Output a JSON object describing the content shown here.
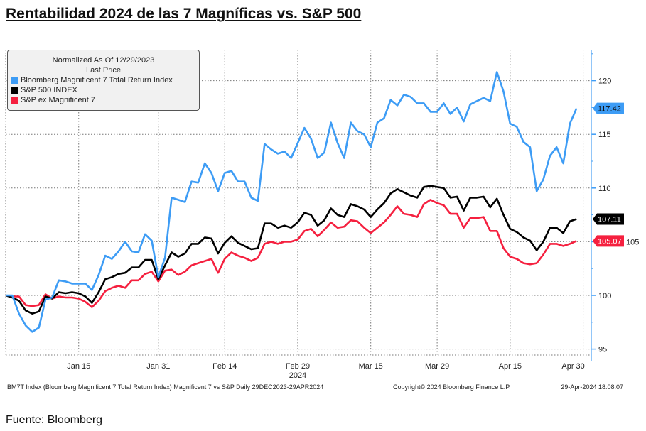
{
  "title": "Rentabilidad 2024 de las 7 Magníficas vs. S&P 500",
  "source": "Fuente: Bloomberg",
  "footer": {
    "left": "BM7T Index (Bloomberg Magnificent 7 Total Return Index) Magnificent 7 vs S&P  Daily 29DEC2023-29APR2024",
    "center": "Copyright© 2024 Bloomberg Finance L.P.",
    "right": "29-Apr-2024 18:08:07"
  },
  "chart_data": {
    "type": "line",
    "legend": {
      "title": "Normalized As Of 12/29/2023",
      "subtitle": "Last Price",
      "placement": "top-left"
    },
    "x": [
      "2023-12-29",
      "2024-01-01",
      "2024-01-02",
      "2024-01-03",
      "2024-01-04",
      "2024-01-05",
      "2024-01-08",
      "2024-01-09",
      "2024-01-10",
      "2024-01-11",
      "2024-01-12",
      "2024-01-15",
      "2024-01-16",
      "2024-01-17",
      "2024-01-18",
      "2024-01-19",
      "2024-01-22",
      "2024-01-23",
      "2024-01-24",
      "2024-01-25",
      "2024-01-26",
      "2024-01-29",
      "2024-01-30",
      "2024-01-31",
      "2024-02-01",
      "2024-02-02",
      "2024-02-05",
      "2024-02-06",
      "2024-02-07",
      "2024-02-08",
      "2024-02-09",
      "2024-02-12",
      "2024-02-13",
      "2024-02-14",
      "2024-02-15",
      "2024-02-16",
      "2024-02-19",
      "2024-02-20",
      "2024-02-21",
      "2024-02-22",
      "2024-02-23",
      "2024-02-26",
      "2024-02-27",
      "2024-02-28",
      "2024-02-29",
      "2024-03-01",
      "2024-03-04",
      "2024-03-05",
      "2024-03-06",
      "2024-03-07",
      "2024-03-08",
      "2024-03-11",
      "2024-03-12",
      "2024-03-13",
      "2024-03-14",
      "2024-03-15",
      "2024-03-18",
      "2024-03-19",
      "2024-03-20",
      "2024-03-21",
      "2024-03-22",
      "2024-03-25",
      "2024-03-26",
      "2024-03-27",
      "2024-03-28",
      "2024-03-29",
      "2024-04-01",
      "2024-04-02",
      "2024-04-03",
      "2024-04-04",
      "2024-04-05",
      "2024-04-08",
      "2024-04-09",
      "2024-04-10",
      "2024-04-11",
      "2024-04-12",
      "2024-04-15",
      "2024-04-16",
      "2024-04-17",
      "2024-04-18",
      "2024-04-19",
      "2024-04-22",
      "2024-04-23",
      "2024-04-24",
      "2024-04-25",
      "2024-04-26",
      "2024-04-29"
    ],
    "x_ticks": [
      {
        "date": "2024-01-15",
        "label": "Jan 15"
      },
      {
        "date": "2024-01-31",
        "label": "Jan 31"
      },
      {
        "date": "2024-02-14",
        "label": "Feb 14"
      },
      {
        "date": "2024-02-29",
        "label": "Feb 29"
      },
      {
        "date": "2024-03-15",
        "label": "Mar 15"
      },
      {
        "date": "2024-03-29",
        "label": "Mar 29"
      },
      {
        "date": "2024-04-15",
        "label": "Apr 15"
      },
      {
        "date": "2024-04-30",
        "label": "Apr 30"
      }
    ],
    "x_year_label": "2024",
    "y_ticks": [
      "95",
      "100",
      "105",
      "110",
      "115",
      "120"
    ],
    "ylim": [
      95,
      122.5
    ],
    "y_axis_side": "right",
    "grid": true,
    "series": [
      {
        "name": "Bloomberg Magnificent 7 Total Return Index",
        "color": "#3d9cf5",
        "last_label": "117.42",
        "label_text_color": "#111111",
        "values": [
          100,
          100,
          98.3,
          97.2,
          96.6,
          97.0,
          99.6,
          99.8,
          101.4,
          101.3,
          101.1,
          101.1,
          101.1,
          100.5,
          101.9,
          103.7,
          103.4,
          104.1,
          105.0,
          104.1,
          104.0,
          105.7,
          105.1,
          101.7,
          103.5,
          109.1,
          108.9,
          108.7,
          110.6,
          110.5,
          112.3,
          111.4,
          109.7,
          111.4,
          111.6,
          110.6,
          110.6,
          109.1,
          108.8,
          114.1,
          113.6,
          113.2,
          113.4,
          112.8,
          114.2,
          115.6,
          114.6,
          112.8,
          113.3,
          116.1,
          114.2,
          112.8,
          116.1,
          115.3,
          115.0,
          113.8,
          116.1,
          116.5,
          118.2,
          117.7,
          118.7,
          118.5,
          117.9,
          117.9,
          117.1,
          117.1,
          117.9,
          116.9,
          117.5,
          116.2,
          117.8,
          118.1,
          118.4,
          118.1,
          120.8,
          119.0,
          116.0,
          115.7,
          114.3,
          113.8,
          109.7,
          110.8,
          113.0,
          113.8,
          112.3,
          116.0,
          117.42
        ]
      },
      {
        "name": "S&P 500 INDEX",
        "color": "#000000",
        "last_label": "107.11",
        "label_text_color": "#ffffff",
        "values": [
          100,
          99.8,
          99.5,
          98.6,
          98.3,
          98.5,
          99.9,
          99.7,
          100.3,
          100.2,
          100.3,
          100.2,
          99.9,
          99.3,
          100.3,
          101.5,
          101.7,
          102.0,
          102.1,
          102.6,
          102.6,
          103.3,
          103.3,
          101.5,
          102.8,
          104.0,
          103.6,
          103.9,
          104.8,
          104.8,
          105.4,
          105.3,
          103.9,
          104.9,
          105.5,
          104.9,
          104.6,
          104.3,
          104.4,
          106.7,
          106.7,
          106.3,
          106.5,
          106.3,
          106.8,
          107.7,
          107.5,
          106.5,
          107.0,
          108.1,
          107.5,
          107.3,
          108.5,
          108.3,
          108.0,
          107.3,
          108.0,
          108.6,
          109.5,
          109.9,
          109.6,
          109.3,
          109.1,
          110.1,
          110.2,
          110.1,
          110.0,
          109.1,
          109.2,
          107.9,
          109.1,
          109.1,
          109.2,
          108.2,
          109.0,
          107.5,
          106.2,
          105.9,
          105.4,
          105.1,
          104.2,
          105.0,
          106.3,
          106.3,
          105.8,
          106.9,
          107.11
        ]
      },
      {
        "name": "S&P ex Magnificent 7",
        "color": "#f5203f",
        "last_label": "105.07",
        "label_text_color": "#ffffff",
        "values": [
          100,
          99.9,
          99.9,
          99.1,
          99.0,
          99.1,
          100.1,
          99.7,
          99.9,
          99.8,
          99.8,
          99.7,
          99.4,
          98.9,
          99.5,
          100.4,
          100.7,
          100.9,
          100.7,
          101.4,
          101.4,
          102.0,
          102.2,
          101.3,
          102.3,
          102.4,
          101.9,
          102.2,
          102.8,
          103.0,
          103.2,
          103.4,
          102.1,
          103.4,
          104.0,
          103.7,
          103.5,
          103.2,
          103.5,
          104.8,
          105.0,
          104.8,
          105.0,
          105.0,
          105.2,
          106.0,
          106.2,
          105.5,
          106.1,
          106.8,
          106.3,
          106.4,
          107.0,
          106.9,
          106.3,
          105.8,
          106.3,
          106.8,
          107.5,
          108.3,
          107.6,
          107.5,
          107.3,
          108.5,
          108.9,
          108.6,
          108.4,
          107.6,
          107.6,
          106.3,
          107.2,
          107.2,
          107.3,
          106.0,
          106.0,
          104.4,
          103.6,
          103.4,
          103.0,
          102.9,
          103.0,
          103.8,
          104.8,
          104.8,
          104.6,
          104.8,
          105.07
        ]
      }
    ]
  }
}
